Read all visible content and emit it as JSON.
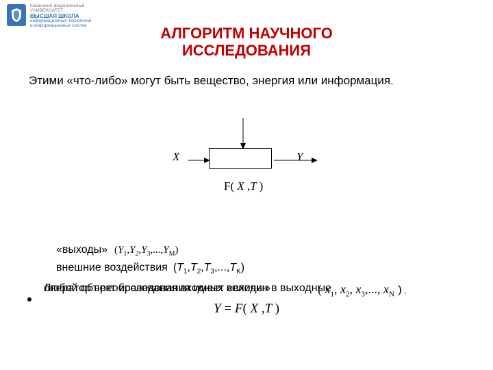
{
  "header": {
    "line1": "Казанский федеральный",
    "line2": "УНИВЕРСИТЕТ",
    "line3": "ВЫСШАЯ ШКОЛА",
    "line4": "информационных технологий",
    "line5": "и информационных систем"
  },
  "title": {
    "line1": "АЛГОРИТМ НАУЧНОГО",
    "line2": "ИССЛЕДОВАНИЯ"
  },
  "intro": "Этими «что-либо» могут быть вещество, энергия или информация.",
  "diagram": {
    "x_label": "X",
    "y_label": "Y",
    "fxt_html": "<span class=\"paren\">F(</span> X <span class=\"paren\">,</span>T <span class=\"paren\">)</span>",
    "box_stroke": "#000000",
    "box_fill": "#ffffff",
    "arrow_color": "#000000",
    "top_arrow": {
      "length": 44,
      "dir": "down"
    },
    "left_arrow": {
      "length": 28,
      "dir": "right"
    },
    "right_arrow": {
      "length": 60,
      "dir": "right"
    }
  },
  "outputs": {
    "label": "«выходы»",
    "math_html": "(<i>Y</i><span class=\"sub\">1</span>,<i>Y</i><span class=\"sub\">2</span>,<i>Y</i><span class=\"sub\">3</span>,...,<i>Y</i><span class=\"sub\">M</span>)"
  },
  "external": {
    "label": "внешние воздействия",
    "math_html": "(<i>T</i><span class=\"sub\">1</span>,<i>T</i><span class=\"sub\">2</span>,<i>T</i><span class=\"sub\">3</span>,...,<i>T</i><span class=\"sub\">K</span>)"
  },
  "bullet": {
    "line_a": "Любой объект исследования имеет «входы»",
    "line_b": "оператор преобразования входных величин в выходные",
    "rhs_html": "( <i>x</i><span class=\"sub\">1</span>, <i>x</i><span class=\"sub\">2</span>, <i>x</i><span class=\"sub\">3</span>,..., <i>x</i><span class=\"sub\">N</span> ) <span class=\"trailing-comma\">,</span>"
  },
  "equation_html": "Y <span class=\"paren\">=</span> F<span class=\"paren\">(</span> X <span class=\"paren\">,</span>T <span class=\"paren\">)</span>",
  "colors": {
    "title": "#c00000",
    "text": "#000000",
    "logo_bg": "#3a73b8",
    "background": "#ffffff"
  }
}
